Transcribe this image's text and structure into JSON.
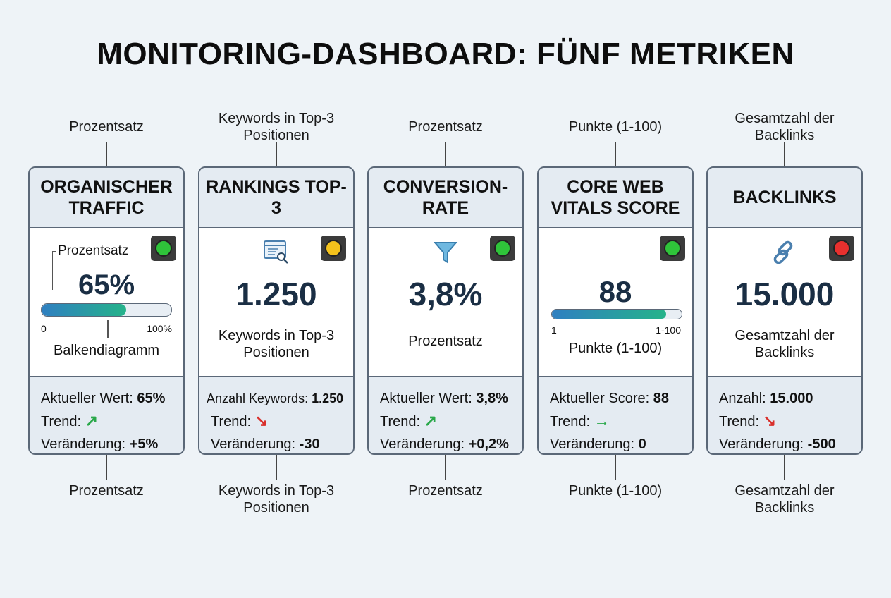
{
  "title": "MONITORING-DASHBOARD: FÜNF METRIKEN",
  "colors": {
    "green": "#2fc33a",
    "yellow": "#f4c21c",
    "red": "#e8302e",
    "trend_up": "#2aa84a",
    "trend_down": "#d9302c"
  },
  "cards": [
    {
      "top_label": "Prozentsatz",
      "bottom_label": "Prozentsatz",
      "title": "ORGANISCHER TRAFFIC",
      "status": "green",
      "kind": "bar-pct",
      "body_label": "Prozentsatz",
      "value": "65%",
      "progress": 65,
      "bar_min": "0",
      "bar_max": "100%",
      "description": "Balkendiagramm",
      "footer": [
        {
          "label": "Aktueller Wert: ",
          "value": "65%"
        },
        {
          "label": "Trend: ",
          "trend": "up",
          "icon": "arrow-up-right-icon"
        },
        {
          "label": "Veränderung: ",
          "value": "+5%"
        }
      ]
    },
    {
      "top_label": "Keywords in Top-3 Positionen",
      "bottom_label": "Keywords in Top-3 Positionen",
      "title": "RANKINGS TOP-3",
      "status": "yellow",
      "kind": "icon",
      "icon": "search-list-icon",
      "value": "1.250",
      "description": "Keywords in Top-3 Positionen",
      "footer": [
        {
          "label": "Anzahl Keywords: ",
          "value": "1.250"
        },
        {
          "label": "Trend: ",
          "trend": "down",
          "icon": "arrow-down-right-icon"
        },
        {
          "label": "Veränderung: ",
          "value": "-30"
        }
      ]
    },
    {
      "top_label": "Prozentsatz",
      "bottom_label": "Prozentsatz",
      "title": "CONVERSION-RATE",
      "status": "green",
      "kind": "icon",
      "icon": "funnel-icon",
      "value": "3,8%",
      "description": "Prozentsatz",
      "footer": [
        {
          "label": "Aktueller Wert: ",
          "value": "3,8%"
        },
        {
          "label": "Trend: ",
          "trend": "up",
          "icon": "arrow-up-right-icon"
        },
        {
          "label": "Veränderung: ",
          "value": "+0,2%"
        }
      ]
    },
    {
      "top_label": "Punkte (1-100)",
      "bottom_label": "Punkte (1-100)",
      "title": "CORE WEB VITALS SCORE",
      "status": "green",
      "kind": "bar-score",
      "value": "88",
      "progress": 88,
      "bar_min": "1",
      "bar_max": "1-100",
      "description": "Punkte (1-100)",
      "footer": [
        {
          "label": "Aktueller Score: ",
          "value": "88"
        },
        {
          "label": "Trend: ",
          "trend": "flat",
          "icon": "arrow-right-icon"
        },
        {
          "label": "Veränderung: ",
          "value": "0"
        }
      ]
    },
    {
      "top_label": "Gesamtzahl der Backlinks",
      "bottom_label": "Gesamtzahl der Backlinks",
      "title": "BACKLINKS",
      "status": "red",
      "kind": "icon",
      "icon": "link-icon",
      "value": "15.000",
      "description": "Gesamtzahl der Backlinks",
      "footer": [
        {
          "label": "Anzahl: ",
          "value": "15.000"
        },
        {
          "label": "Trend: ",
          "trend": "down",
          "icon": "arrow-down-right-icon"
        },
        {
          "label": "Veränderung: ",
          "value": "-500"
        }
      ]
    }
  ]
}
